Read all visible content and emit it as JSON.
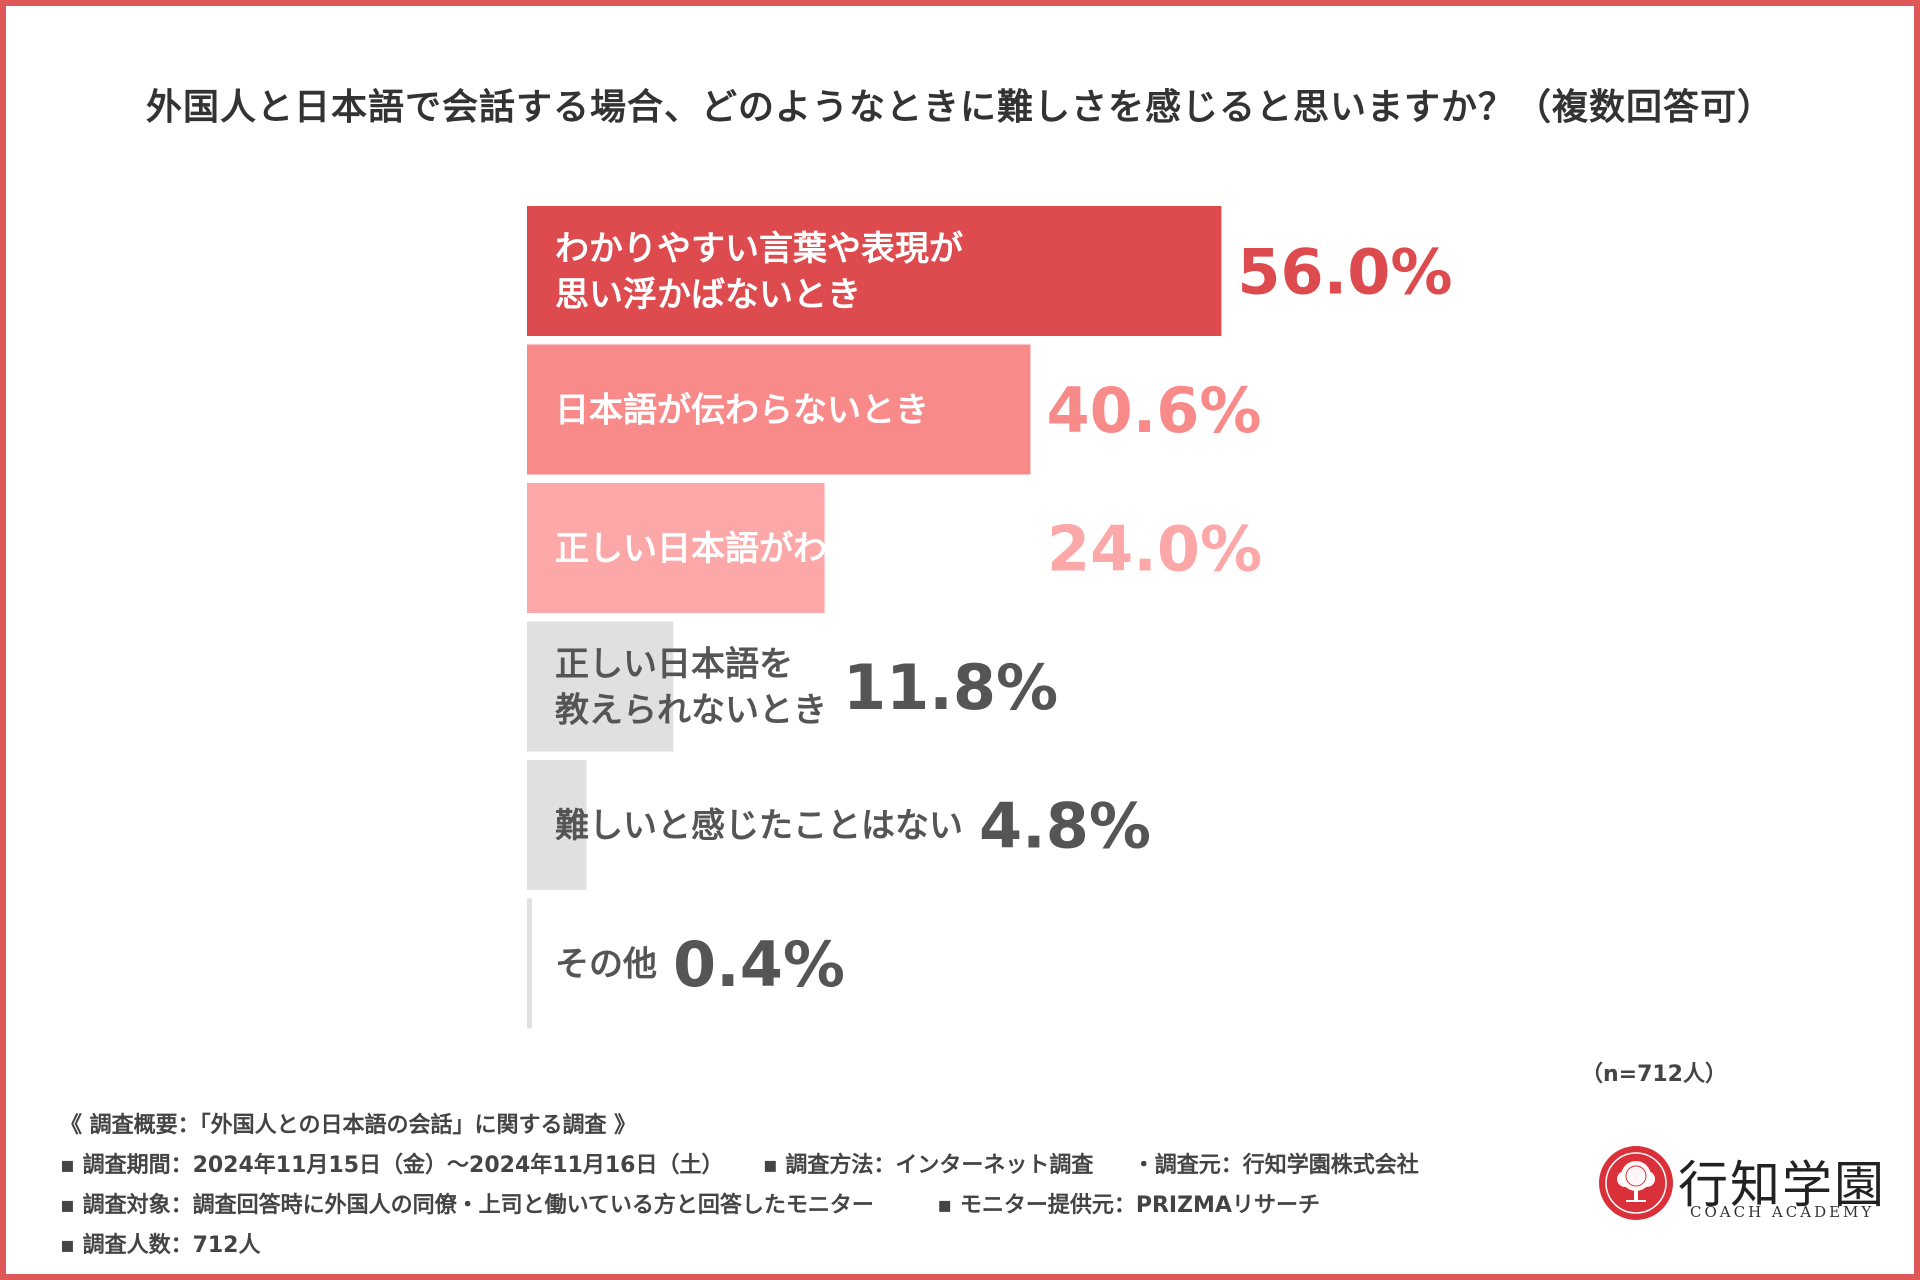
{
  "title": "外国人と日本語で会話する場合、どのようなときに難しさを感じると思いますか？（複数回答可）",
  "chart_data": {
    "type": "bar",
    "orientation": "horizontal",
    "title": "外国人と日本語で会話する場合、どのようなときに難しさを感じると思いますか？（複数回答可）",
    "categories": [
      [
        "わかりやすい言葉や表現が",
        "思い浮かばないとき"
      ],
      [
        "日本語が伝わらないとき"
      ],
      [
        "正しい日本語がわからないとき"
      ],
      [
        "正しい日本語を",
        "教えられないとき"
      ],
      [
        "難しいと感じたことはない"
      ],
      [
        "その他"
      ]
    ],
    "values": [
      56.0,
      40.6,
      24.0,
      11.8,
      4.8,
      0.4
    ],
    "value_labels": [
      "56.0%",
      "40.6%",
      "24.0%",
      "11.8%",
      "4.8%",
      "0.4%"
    ],
    "unit": "%",
    "xlim": [
      0,
      100
    ],
    "colors": [
      "#dd4b4e",
      "#f98a8a",
      "#fda8a8",
      "#e0e0e0",
      "#e0e0e0",
      "#e0e0e0"
    ],
    "value_colors": [
      "#dd4b4e",
      "#f98a8a",
      "#fda8a8",
      "#555555",
      "#555555",
      "#555555"
    ],
    "label_colors": [
      "#ffffff",
      "#ffffff",
      "#ffffff",
      "#555555",
      "#555555",
      "#555555"
    ],
    "sample_note": "（n=712人）"
  },
  "survey": {
    "heading": "《 調査概要：「外国人との日本語の会話」に関する調査 》",
    "period": "▪ 調査期間：2024年11月15日（金）～2024年11月16日（土）",
    "method": "▪ 調査方法：インターネット調査",
    "source": "・調査元：行知学園株式会社",
    "target": "▪ 調査対象：調査回答時に外国人の同僚・上司と働いている方と回答したモニター",
    "provider": "▪ モニター提供元：PRIZMAリサーチ",
    "count": "▪ 調査人数：712人"
  },
  "logo": {
    "name": "行知学園",
    "subtitle": "COACH ACADEMY",
    "color": "#d9303a"
  }
}
